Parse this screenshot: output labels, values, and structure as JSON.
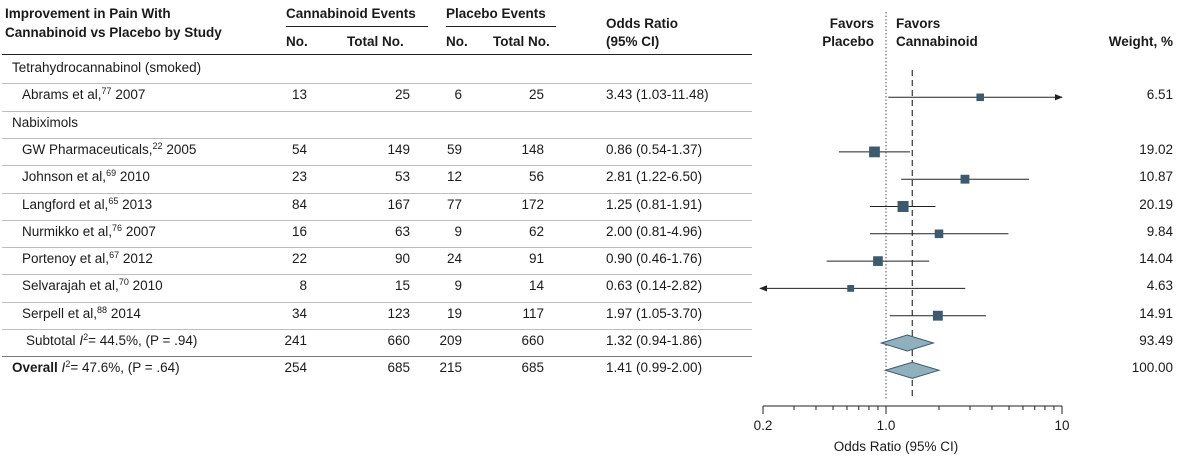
{
  "header": {
    "study_line1": "Improvement in Pain With",
    "study_line2": "Cannabinoid vs Placebo by Study",
    "cannabinoid_group": "Cannabinoid Events",
    "placebo_group": "Placebo Events",
    "col_no": "No.",
    "col_total": "Total No.",
    "or_line1": "Odds Ratio",
    "or_line2": "(95% CI)",
    "favors_placebo_1": "Favors",
    "favors_placebo_2": "Placebo",
    "favors_cannabinoid_1": "Favors",
    "favors_cannabinoid_2": "Cannabinoid",
    "weight": "Weight, %"
  },
  "chart_data": {
    "type": "forest",
    "x_scale": "log",
    "xlim": [
      0.2,
      10
    ],
    "x_ticks": [
      "0.2",
      "1.0",
      "10"
    ],
    "xlabel": "Odds Ratio (95% CI)",
    "reference_line": 1.0,
    "pooled_line": 1.41,
    "rows": [
      {
        "kind": "group",
        "label": "Tetrahydrocannabinol (smoked)"
      },
      {
        "kind": "study",
        "name": "Abrams et al,",
        "ref": "77",
        "year": "2007",
        "can_no": "13",
        "can_total": "25",
        "pla_no": "6",
        "pla_total": "25",
        "or_text": "3.43 (1.03-11.48)",
        "or": 3.43,
        "lo": 1.03,
        "hi": 11.48,
        "weight": "6.51",
        "arrow_right": true
      },
      {
        "kind": "group",
        "label": "Nabiximols"
      },
      {
        "kind": "study",
        "name": "GW Pharmaceuticals,",
        "ref": "22",
        "year": "2005",
        "can_no": "54",
        "can_total": "149",
        "pla_no": "59",
        "pla_total": "148",
        "or_text": "0.86 (0.54-1.37)",
        "or": 0.86,
        "lo": 0.54,
        "hi": 1.37,
        "weight": "19.02"
      },
      {
        "kind": "study",
        "name": "Johnson et al,",
        "ref": "69",
        "year": "2010",
        "can_no": "23",
        "can_total": "53",
        "pla_no": "12",
        "pla_total": "56",
        "or_text": "2.81 (1.22-6.50)",
        "or": 2.81,
        "lo": 1.22,
        "hi": 6.5,
        "weight": "10.87"
      },
      {
        "kind": "study",
        "name": "Langford et al,",
        "ref": "65",
        "year": "2013",
        "can_no": "84",
        "can_total": "167",
        "pla_no": "77",
        "pla_total": "172",
        "or_text": "1.25 (0.81-1.91)",
        "or": 1.25,
        "lo": 0.81,
        "hi": 1.91,
        "weight": "20.19"
      },
      {
        "kind": "study",
        "name": "Nurmikko et al,",
        "ref": "76",
        "year": "2007",
        "can_no": "16",
        "can_total": "63",
        "pla_no": "9",
        "pla_total": "62",
        "or_text": "2.00 (0.81-4.96)",
        "or": 2.0,
        "lo": 0.81,
        "hi": 4.96,
        "weight": "9.84"
      },
      {
        "kind": "study",
        "name": "Portenoy et al,",
        "ref": "67",
        "year": "2012",
        "can_no": "22",
        "can_total": "90",
        "pla_no": "24",
        "pla_total": "91",
        "or_text": "0.90 (0.46-1.76)",
        "or": 0.9,
        "lo": 0.46,
        "hi": 1.76,
        "weight": "14.04"
      },
      {
        "kind": "study",
        "name": "Selvarajah et al,",
        "ref": "70",
        "year": "2010",
        "can_no": "8",
        "can_total": "15",
        "pla_no": "9",
        "pla_total": "14",
        "or_text": "0.63 (0.14-2.82)",
        "or": 0.63,
        "lo": 0.14,
        "hi": 2.82,
        "weight": "4.63",
        "arrow_left": true
      },
      {
        "kind": "study",
        "name": "Serpell et al,",
        "ref": "88",
        "year": "2014",
        "can_no": "34",
        "can_total": "123",
        "pla_no": "19",
        "pla_total": "117",
        "or_text": "1.97 (1.05-3.70)",
        "or": 1.97,
        "lo": 1.05,
        "hi": 3.7,
        "weight": "14.91"
      },
      {
        "kind": "subtotal",
        "label": "Subtotal",
        "i2": "I",
        "stat": "= 44.5%, (P = .94)",
        "can_no": "241",
        "can_total": "660",
        "pla_no": "209",
        "pla_total": "660",
        "or_text": "1.32 (0.94-1.86)",
        "or": 1.32,
        "lo": 0.94,
        "hi": 1.86,
        "weight": "93.49"
      },
      {
        "kind": "overall",
        "label": "Overall",
        "i2": "I",
        "stat": "= 47.6%, (P = .64)",
        "can_no": "254",
        "can_total": "685",
        "pla_no": "215",
        "pla_total": "685",
        "or_text": "1.41 (0.99-2.00)",
        "or": 1.41,
        "lo": 0.99,
        "hi": 2.0,
        "weight": "100.00"
      }
    ]
  },
  "colors": {
    "marker": "#3d5a6e",
    "diamond_fill": "#8fb0bc",
    "diamond_stroke": "#3d5a6e",
    "line": "#222222"
  }
}
